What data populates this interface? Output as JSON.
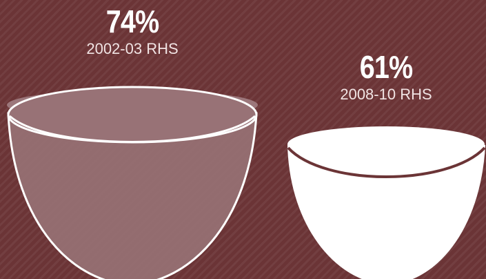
{
  "stats": [
    {
      "value": "74%",
      "label": "2002-03 RHS",
      "fill_fraction": 0.74
    },
    {
      "value": "61%",
      "label": "2008-10 RHS",
      "fill_fraction": 0.61
    }
  ],
  "colors": {
    "background": "#6b3436",
    "bowl_outline": "#ffffff",
    "bowl_left_fill": "#987276",
    "bowl_right_fill": "#ffffff"
  }
}
